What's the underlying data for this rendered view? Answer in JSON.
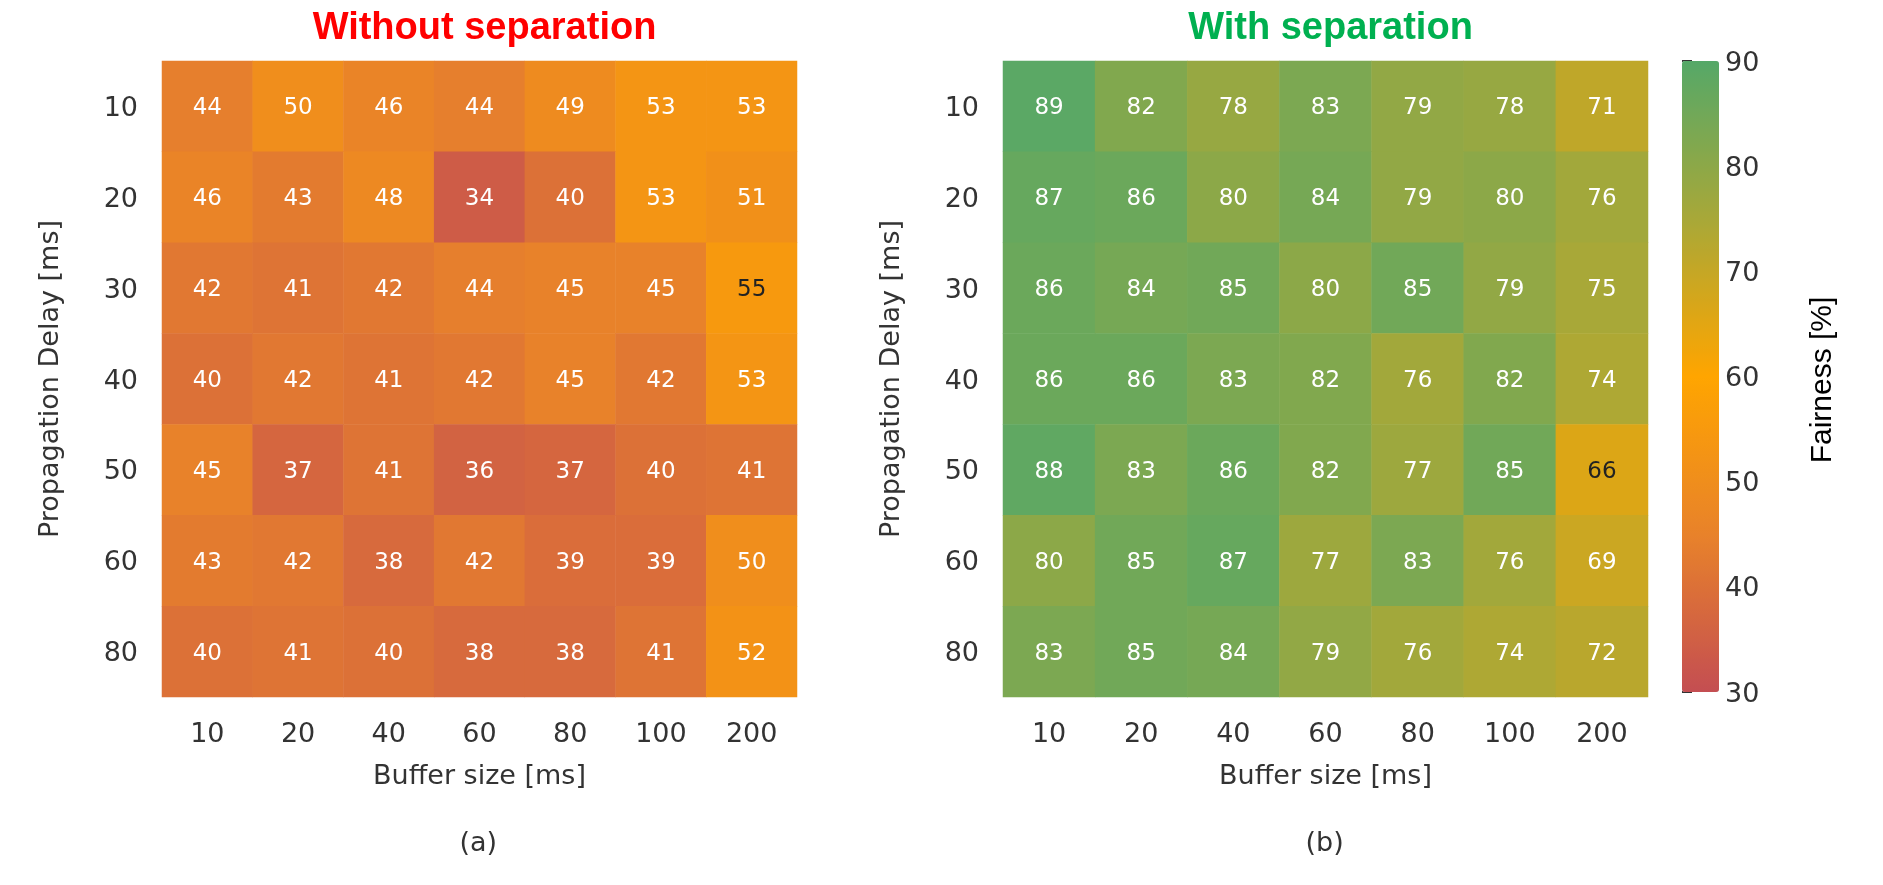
{
  "chart_data": [
    {
      "type": "heatmap",
      "title": "Without separation",
      "xlabel": "Buffer size [ms]",
      "ylabel": "Propagation Delay [ms]",
      "categories": [
        "10",
        "20",
        "40",
        "60",
        "80",
        "100",
        "200"
      ],
      "y_categories": [
        "10",
        "20",
        "30",
        "40",
        "50",
        "60",
        "80"
      ],
      "cells": [
        [
          44,
          50,
          46,
          44,
          49,
          53,
          53
        ],
        [
          46,
          43,
          48,
          34,
          40,
          53,
          51
        ],
        [
          42,
          41,
          42,
          44,
          45,
          45,
          55
        ],
        [
          40,
          42,
          41,
          42,
          45,
          42,
          53
        ],
        [
          45,
          37,
          41,
          36,
          37,
          40,
          41
        ],
        [
          43,
          42,
          38,
          42,
          39,
          39,
          50
        ],
        [
          40,
          41,
          40,
          38,
          38,
          41,
          52
        ]
      ],
      "data_labels": true,
      "annotations": [
        "(a)"
      ]
    },
    {
      "type": "heatmap",
      "title": "With separation",
      "xlabel": "Buffer size [ms]",
      "ylabel": "Propagation Delay [ms]",
      "categories": [
        "10",
        "20",
        "40",
        "60",
        "80",
        "100",
        "200"
      ],
      "y_categories": [
        "10",
        "20",
        "30",
        "40",
        "50",
        "60",
        "80"
      ],
      "cells": [
        [
          89,
          82,
          78,
          83,
          79,
          78,
          71
        ],
        [
          87,
          86,
          80,
          84,
          79,
          80,
          76
        ],
        [
          86,
          84,
          85,
          80,
          85,
          79,
          75
        ],
        [
          86,
          86,
          83,
          82,
          76,
          82,
          74
        ],
        [
          88,
          83,
          86,
          82,
          77,
          85,
          66
        ],
        [
          80,
          85,
          87,
          77,
          83,
          76,
          69
        ],
        [
          83,
          85,
          84,
          79,
          76,
          74,
          72
        ]
      ],
      "clim": [
        30,
        90
      ],
      "cticks": [
        30,
        40,
        50,
        60,
        70,
        80,
        90
      ],
      "clabel": "Fairness [%]",
      "data_labels": true,
      "annotations": [
        "(b)"
      ]
    }
  ]
}
